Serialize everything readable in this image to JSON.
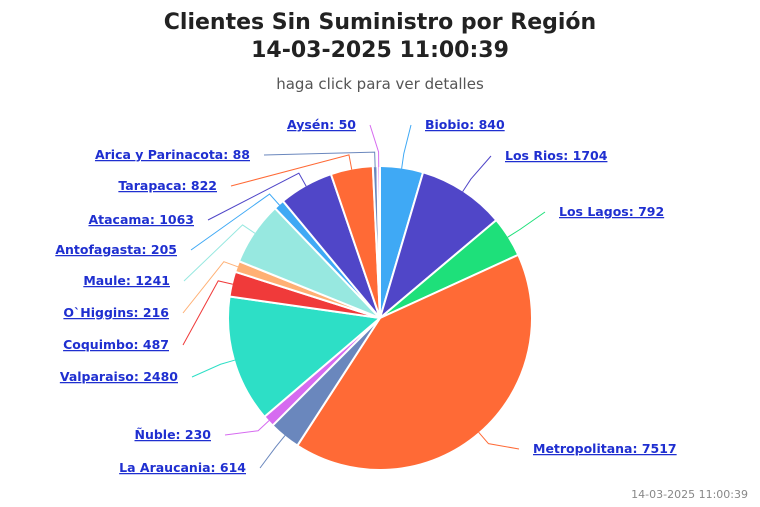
{
  "header": {
    "title_line1": "Clientes Sin Suministro por Región",
    "title_line2": "14-03-2025 11:00:39",
    "subtitle": "haga click para ver detalles"
  },
  "footer": {
    "timestamp": "14-03-2025 11:00:39"
  },
  "chart_data": {
    "type": "pie",
    "title": "Clientes Sin Suministro por Región 14-03-2025 11:00:39",
    "subtitle": "haga click para ver detalles",
    "slices": [
      {
        "name": "Biobio",
        "value": 840,
        "color": "#3fa9f5"
      },
      {
        "name": "Los Rios",
        "value": 1704,
        "color": "#5046c8"
      },
      {
        "name": "Los Lagos",
        "value": 792,
        "color": "#1ee07a"
      },
      {
        "name": "Metropolitana",
        "value": 7517,
        "color": "#ff6a36"
      },
      {
        "name": "La Araucania",
        "value": 614,
        "color": "#6a87bd"
      },
      {
        "name": "Ñuble",
        "value": 230,
        "color": "#d66bf0"
      },
      {
        "name": "Valparaiso",
        "value": 2480,
        "color": "#2ddfc6"
      },
      {
        "name": "Coquimbo",
        "value": 487,
        "color": "#f03a3a"
      },
      {
        "name": "O`Higgins",
        "value": 216,
        "color": "#ffb074"
      },
      {
        "name": "Maule",
        "value": 1241,
        "color": "#97e8e0"
      },
      {
        "name": "Antofagasta",
        "value": 205,
        "color": "#3fa9f5"
      },
      {
        "name": "Atacama",
        "value": 1063,
        "color": "#5046c8"
      },
      {
        "name": "Tarapaca",
        "value": 822,
        "color": "#ff6a36"
      },
      {
        "name": "Arica y Parinacota",
        "value": 88,
        "color": "#6a87bd"
      },
      {
        "name": "Aysén",
        "value": 50,
        "color": "#d66bf0"
      }
    ]
  }
}
